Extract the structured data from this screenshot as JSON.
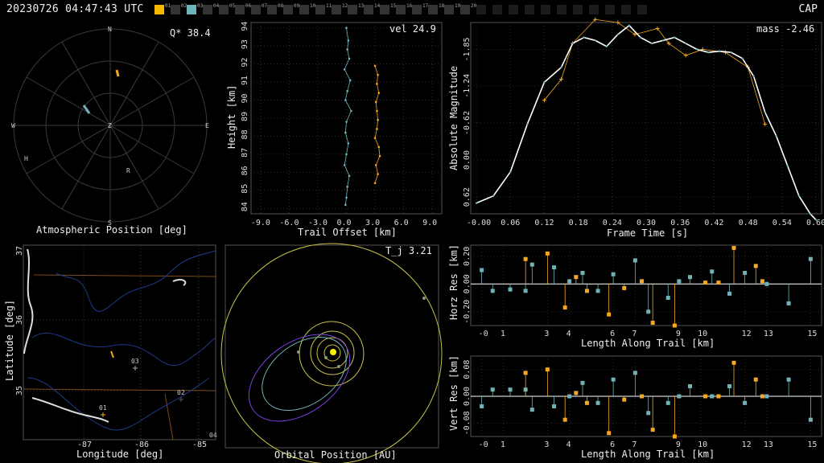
{
  "header": {
    "timestamp": "20230726 04:47:43 UTC",
    "right_label": "CAP"
  },
  "stations": {
    "items": [
      {
        "id": "01",
        "color": "#f5b800"
      },
      {
        "id": "02",
        "color": "#333"
      },
      {
        "id": "03",
        "color": "#6fb3b8"
      },
      {
        "id": "04",
        "color": "#333"
      },
      {
        "id": "05",
        "color": "#333"
      },
      {
        "id": "06",
        "color": "#333"
      },
      {
        "id": "07",
        "color": "#333"
      },
      {
        "id": "08",
        "color": "#333"
      },
      {
        "id": "09",
        "color": "#333"
      },
      {
        "id": "10",
        "color": "#333"
      },
      {
        "id": "11",
        "color": "#333"
      },
      {
        "id": "12",
        "color": "#333"
      },
      {
        "id": "13",
        "color": "#333"
      },
      {
        "id": "14",
        "color": "#333"
      },
      {
        "id": "15",
        "color": "#333"
      },
      {
        "id": "16",
        "color": "#333"
      },
      {
        "id": "17",
        "color": "#333"
      },
      {
        "id": "18",
        "color": "#333"
      },
      {
        "id": "19",
        "color": "#333"
      },
      {
        "id": "20",
        "color": "#333"
      },
      {
        "id": "",
        "color": "#1a1a1a"
      },
      {
        "id": "",
        "color": "#1a1a1a"
      },
      {
        "id": "",
        "color": "#1a1a1a"
      },
      {
        "id": "",
        "color": "#1a1a1a"
      },
      {
        "id": "",
        "color": "#1a1a1a"
      },
      {
        "id": "",
        "color": "#1a1a1a"
      },
      {
        "id": "",
        "color": "#1a1a1a"
      },
      {
        "id": "",
        "color": "#1a1a1a"
      },
      {
        "id": "",
        "color": "#1a1a1a"
      },
      {
        "id": "",
        "color": "#1a1a1a"
      },
      {
        "id": "",
        "color": "#1a1a1a"
      }
    ]
  },
  "colors": {
    "cam1": "#f5a623",
    "cam2": "#6fb3b8",
    "grid": "#3a3a3a",
    "white": "#ffffff"
  },
  "atmo": {
    "label": "Atmospheric Position [deg]",
    "annotation": "Q* 38.4",
    "cardinals": {
      "n": "N",
      "s": "S",
      "e": "E",
      "w": "W",
      "z": "Z"
    },
    "markers": {
      "h": "H",
      "r": "R"
    }
  },
  "height": {
    "ylabel": "Height [km]",
    "xlabel": "Trail Offset [km]",
    "annotation": "vel 24.9",
    "yticks": [
      "84",
      "85",
      "86",
      "87",
      "88",
      "89",
      "90",
      "91",
      "92",
      "93",
      "94"
    ],
    "xticks": [
      "-9.0",
      "-6.0",
      "-3.0",
      "0.0",
      "3.0",
      "6.0",
      "9.0"
    ]
  },
  "mag": {
    "ylabel": "Absolute Magnitude",
    "xlabel": "Frame Time [s]",
    "annotation": "mass -2.46",
    "yticks": [
      "-1.85",
      "-1.24",
      "-0.62",
      "0.00",
      "0.62"
    ],
    "xticks": [
      "-0.00",
      "0.06",
      "0.12",
      "0.18",
      "0.24",
      "0.30",
      "0.36",
      "0.42",
      "0.48",
      "0.54",
      "0.60"
    ]
  },
  "map": {
    "ylabel": "Latitude [deg]",
    "xlabel": "Longitude [deg]",
    "yticks": [
      "37",
      "36",
      "35"
    ],
    "xticks": [
      "-87",
      "-86",
      "-85"
    ],
    "stations": [
      "01",
      "02",
      "03"
    ],
    "corner": "04"
  },
  "orbit": {
    "label": "Orbital Position [AU]",
    "annotation": "T_j 3.21"
  },
  "horz": {
    "ylabel": "Horz Res [km]",
    "xlabel": "Length Along Trail [km]",
    "yticks": [
      "0.20",
      "0.00",
      "-0.20"
    ],
    "xticks": [
      "-0",
      "1",
      "3",
      "4",
      "6",
      "7",
      "9",
      "10",
      "12",
      "13",
      "15"
    ]
  },
  "vert": {
    "ylabel": "Vert Res [km]",
    "xlabel": "Length Along Trail [km]",
    "yticks": [
      "0.08",
      "0.00",
      "-0.08"
    ],
    "xticks": [
      "-0",
      "1",
      "3",
      "4",
      "6",
      "7",
      "9",
      "10",
      "12",
      "13",
      "15"
    ]
  },
  "chart_data": [
    {
      "type": "line",
      "title": "",
      "xlabel": "Frame Time [s]",
      "ylabel": "Absolute Magnitude",
      "xlim": [
        -0.01,
        0.61
      ],
      "ylim_inverted": [
        0.9,
        -2.3
      ],
      "series": [
        {
          "color": "#f5a623",
          "x": [
            0.12,
            0.15,
            0.17,
            0.21,
            0.25,
            0.28,
            0.32,
            0.34,
            0.37,
            0.4,
            0.44,
            0.48,
            0.51
          ],
          "y": [
            -1.0,
            -1.35,
            -1.95,
            -2.35,
            -2.3,
            -2.1,
            -2.2,
            -1.95,
            -1.75,
            -1.85,
            -1.8,
            -1.55,
            -0.6
          ]
        },
        {
          "color": "#ffffff",
          "x": [
            0.0,
            0.03,
            0.06,
            0.09,
            0.12,
            0.15,
            0.17,
            0.19,
            0.21,
            0.23,
            0.25,
            0.27,
            0.29,
            0.31,
            0.33,
            0.35,
            0.37,
            0.39,
            0.41,
            0.43,
            0.45,
            0.47,
            0.49,
            0.51,
            0.53,
            0.55,
            0.57,
            0.59,
            0.6
          ],
          "y": [
            0.72,
            0.6,
            0.2,
            -0.6,
            -1.3,
            -1.55,
            -1.95,
            -2.05,
            -2.0,
            -1.9,
            -2.1,
            -2.25,
            -2.05,
            -1.95,
            -2.0,
            -2.05,
            -1.95,
            -1.85,
            -1.8,
            -1.82,
            -1.8,
            -1.7,
            -1.4,
            -0.8,
            -0.4,
            0.1,
            0.6,
            0.9,
            1.0
          ]
        }
      ]
    },
    {
      "type": "scatter",
      "xlabel": "Trail Offset [km]",
      "ylabel": "Height [km]",
      "xlim": [
        -10,
        10
      ],
      "ylim": [
        83.7,
        94.3
      ],
      "series": [
        {
          "color": "#6fb3b8",
          "x": [
            0.0,
            0.2,
            0.1,
            0.3,
            -0.2,
            0.4,
            0.1,
            -0.1,
            0.5,
            0.0,
            -0.1,
            0.2,
            0.0,
            -0.2,
            0.3,
            0.1,
            0.0,
            -0.1
          ],
          "y": [
            94.0,
            93.3,
            92.8,
            92.3,
            91.7,
            91.1,
            90.5,
            90.0,
            89.4,
            88.8,
            88.2,
            87.6,
            87.0,
            86.4,
            85.8,
            85.2,
            84.6,
            84.2
          ]
        },
        {
          "color": "#f5a623",
          "x": [
            3.0,
            3.3,
            3.2,
            3.4,
            3.1,
            3.2,
            3.3,
            3.2,
            3.0,
            3.4,
            3.5,
            3.1,
            3.3,
            3.0
          ],
          "y": [
            91.9,
            91.4,
            90.9,
            90.4,
            89.9,
            89.4,
            88.9,
            88.4,
            87.9,
            87.4,
            86.9,
            86.4,
            85.9,
            85.4
          ]
        }
      ]
    },
    {
      "type": "bar",
      "title": "",
      "xlabel": "Length Along Trail [km]",
      "ylabel": "Horz Res [km]",
      "xlim": [
        -0.5,
        15.5
      ],
      "ylim": [
        -0.3,
        0.28
      ],
      "series": [
        {
          "color": "#6fb3b8",
          "x": [
            0.0,
            0.5,
            1.3,
            2.0,
            2.3,
            3.3,
            4.0,
            4.6,
            5.3,
            6.0,
            7.0,
            7.6,
            8.5,
            9.0,
            9.5,
            10.5,
            11.3,
            12.0,
            13.0,
            14.0,
            15.0
          ],
          "y": [
            0.1,
            -0.05,
            -0.04,
            -0.05,
            0.14,
            0.12,
            0.02,
            0.08,
            -0.05,
            0.07,
            0.17,
            -0.2,
            -0.1,
            0.02,
            0.05,
            0.09,
            -0.07,
            0.08,
            0.0,
            -0.14,
            0.18
          ]
        },
        {
          "color": "#f5a623",
          "x": [
            2.0,
            3.0,
            3.8,
            4.3,
            4.8,
            5.8,
            6.5,
            7.3,
            7.8,
            8.8,
            10.2,
            10.8,
            11.5,
            12.5,
            12.8
          ],
          "y": [
            0.18,
            0.22,
            -0.17,
            0.05,
            -0.05,
            -0.22,
            -0.03,
            0.02,
            -0.28,
            -0.3,
            0.01,
            0.01,
            0.26,
            0.13,
            0.02
          ]
        }
      ]
    },
    {
      "type": "bar",
      "title": "",
      "xlabel": "Length Along Trail [km]",
      "ylabel": "Vert Res [km]",
      "xlim": [
        -0.5,
        15.5
      ],
      "ylim": [
        -0.12,
        0.12
      ],
      "series": [
        {
          "color": "#6fb3b8",
          "x": [
            0.0,
            0.5,
            1.3,
            2.0,
            2.3,
            3.3,
            4.0,
            4.6,
            5.3,
            6.0,
            7.0,
            7.6,
            8.5,
            9.0,
            9.5,
            10.5,
            11.3,
            12.0,
            13.0,
            14.0,
            15.0
          ],
          "y": [
            -0.03,
            0.02,
            0.02,
            0.02,
            -0.04,
            -0.03,
            0.0,
            0.04,
            -0.02,
            0.05,
            0.07,
            -0.05,
            -0.02,
            0.0,
            0.03,
            0.0,
            0.03,
            -0.02,
            0.0,
            0.05,
            -0.07
          ]
        },
        {
          "color": "#f5a623",
          "x": [
            2.0,
            3.0,
            3.8,
            4.3,
            4.8,
            5.8,
            6.5,
            7.3,
            7.8,
            8.8,
            10.2,
            10.8,
            11.5,
            12.5,
            12.8
          ],
          "y": [
            0.07,
            0.08,
            -0.07,
            0.01,
            -0.02,
            -0.11,
            -0.01,
            0.0,
            -0.1,
            -0.12,
            0.0,
            0.0,
            0.1,
            0.05,
            0.0
          ]
        }
      ]
    }
  ]
}
